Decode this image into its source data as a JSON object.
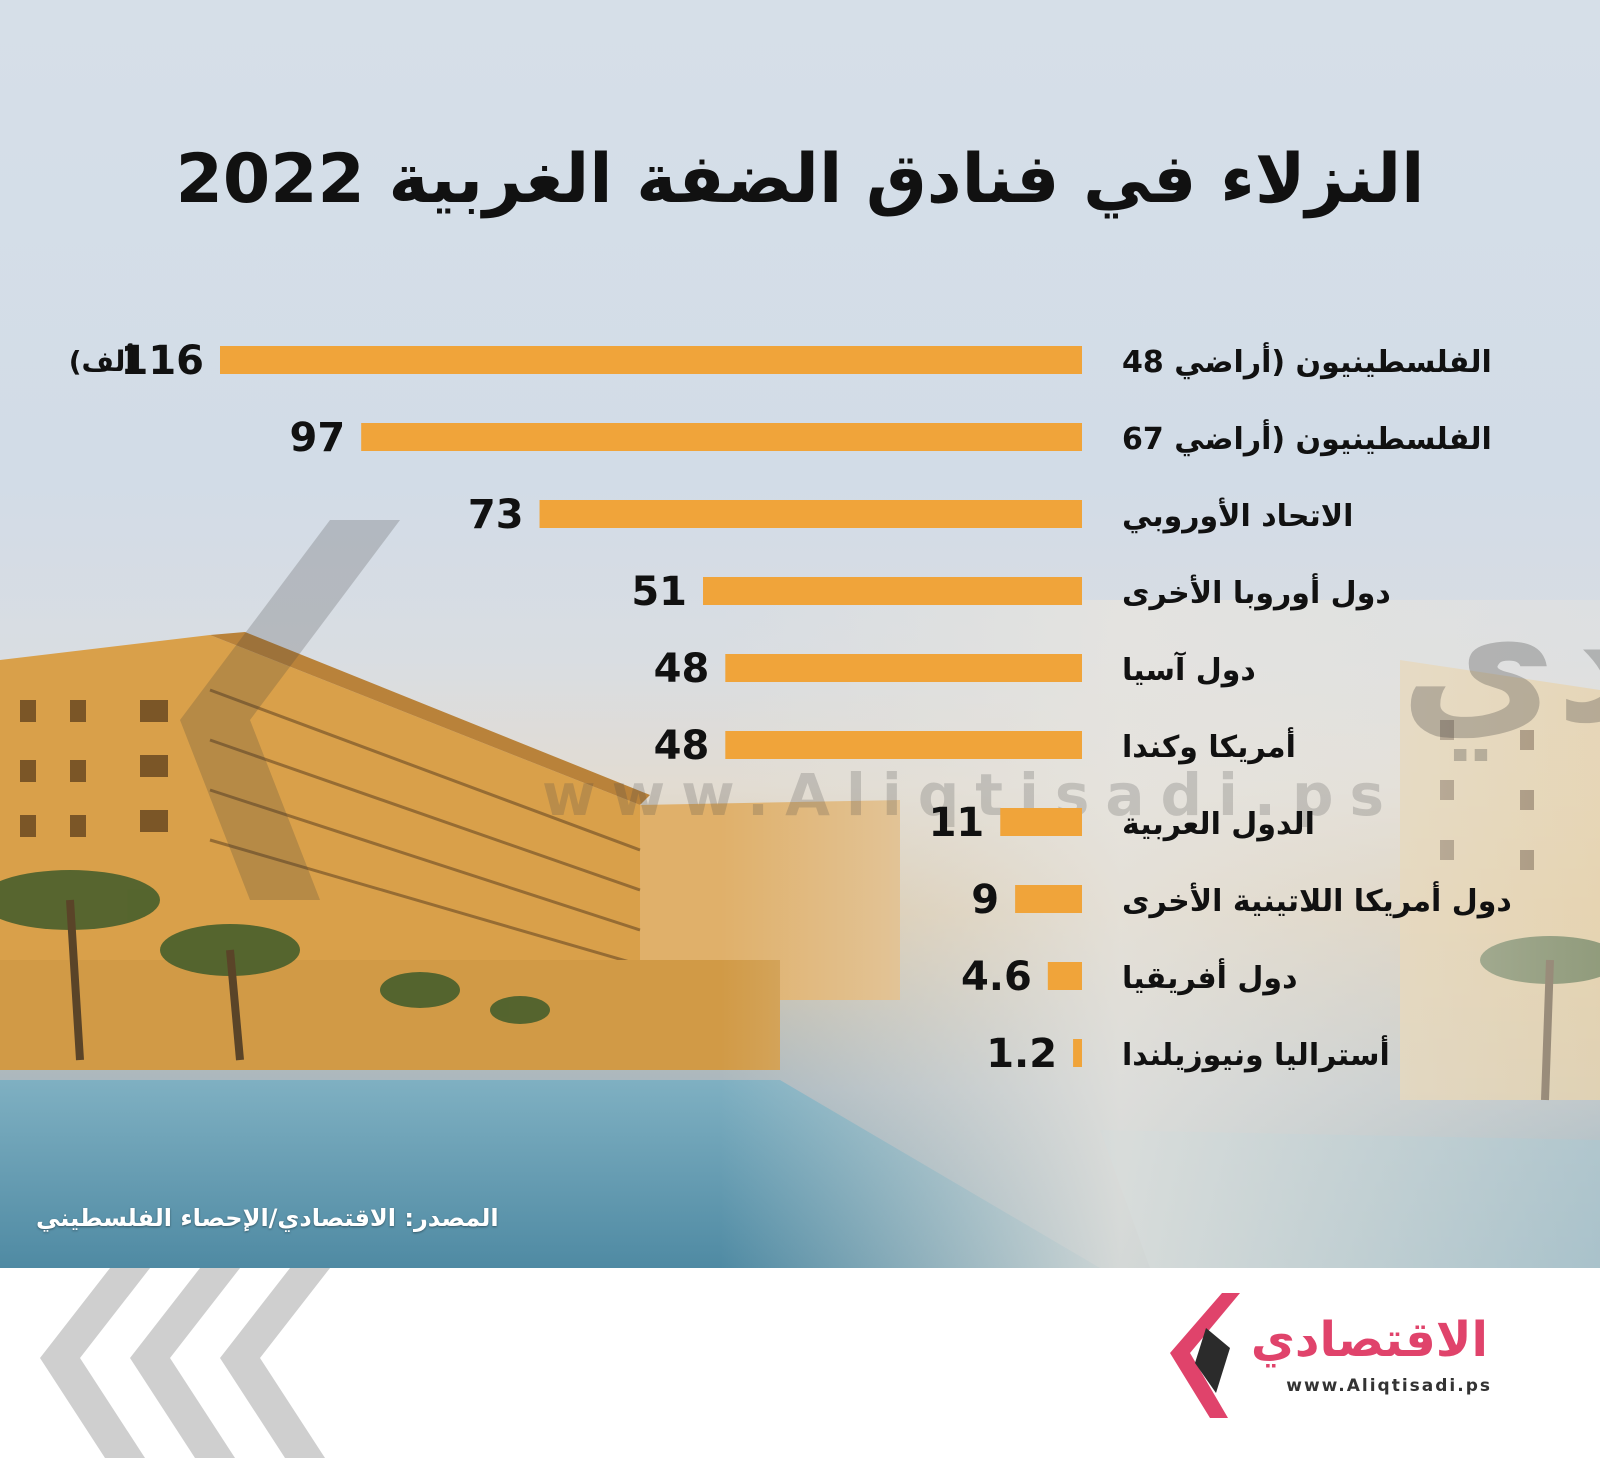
{
  "title": "النزلاء في فنادق الضفة الغربية 2022",
  "watermark": {
    "text": "الاقتصادي",
    "url": "www.Aliqtisadi.ps"
  },
  "source": "المصدر: الاقتصادي/الإحصاء الفلسطيني",
  "brand": {
    "name": "الاقتصادي",
    "url": "www.Aliqtisadi.ps",
    "color": "#e0436b"
  },
  "chart_data": {
    "type": "bar",
    "orientation": "horizontal",
    "bar_color": "#f0a43a",
    "unit_label": "(ألف",
    "categories": [
      "الفلسطينيون (أراضي 48",
      "الفلسطينيون (أراضي 67",
      "الاتحاد الأوروبي",
      "دول أوروبا الأخرى",
      "دول آسيا",
      "أمريكا وكندا",
      "الدول العربية",
      "دول أمريكا اللاتينية الأخرى",
      "دول أفريقيا",
      "أستراليا ونيوزيلندا"
    ],
    "values": [
      116,
      97,
      73,
      51,
      48,
      48,
      11,
      9,
      4.6,
      1.2
    ],
    "value_labels": [
      "116",
      "97",
      "73",
      "51",
      "48",
      "48",
      "11",
      "9",
      "4.6",
      "1.2"
    ]
  }
}
